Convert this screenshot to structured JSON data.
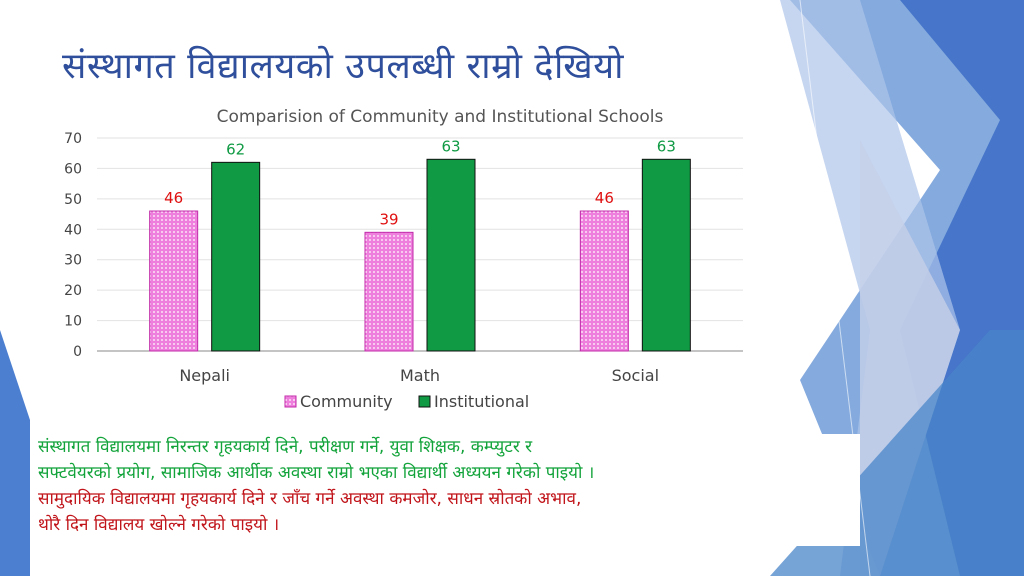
{
  "slide": {
    "title": "संस्थागत विद्यालयको उपलब्धी राम्रो देखियो"
  },
  "chart_data": {
    "type": "bar",
    "title": "Comparision of Community and Institutional Schools",
    "categories": [
      "Nepali",
      "Math",
      "Social"
    ],
    "series": [
      {
        "name": "Community",
        "values": [
          46,
          39,
          46
        ],
        "color": "#ee7fdc",
        "label_color": "#e01010"
      },
      {
        "name": "Institutional",
        "values": [
          62,
          63,
          63
        ],
        "color": "#0f9a43",
        "label_color": "#0f9a43"
      }
    ],
    "ylim": [
      0,
      70
    ],
    "yticks": [
      0,
      10,
      20,
      30,
      40,
      50,
      60,
      70
    ],
    "grid": true,
    "legend": "bottom"
  },
  "notes": {
    "institutional_line1": "संस्थागत विद्यालयमा निरन्तर गृहयकार्य दिने, परीक्षण गर्ने, युवा शिक्षक, कम्प्युटर र",
    "institutional_line2": "सफ्टवेयरको प्रयोग, सामाजिक आर्थीक अवस्था राम्रो भएका विद्यार्थी अध्ययन गरेको पाइयो ।",
    "community_line1": "सामुदायिक विद्यालयमा गृहयकार्य दिने र जाँच गर्ने अवस्था कमजोर, साधन स्रोतको अभाव,",
    "community_line2": "थोरै दिन विद्यालय खोल्ने गरेको पाइयो ।"
  }
}
